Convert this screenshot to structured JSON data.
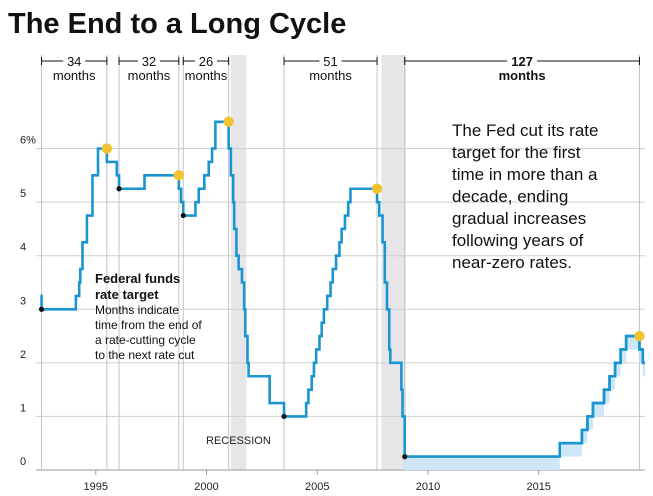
{
  "chart_data": {
    "type": "line",
    "title": "The End to a Long Cycle",
    "series": [
      {
        "values": [
          [
            1992.5,
            3.25
          ],
          [
            1992.55,
            3.0
          ],
          [
            1993.9,
            3.0
          ],
          [
            1994.1,
            3.25
          ],
          [
            1994.25,
            3.5
          ],
          [
            1994.3,
            3.75
          ],
          [
            1994.4,
            4.25
          ],
          [
            1994.6,
            4.75
          ],
          [
            1994.85,
            5.5
          ],
          [
            1995.1,
            6.0
          ],
          [
            1995.5,
            5.75
          ],
          [
            1995.95,
            5.5
          ],
          [
            1996.05,
            5.25
          ],
          [
            1997.2,
            5.5
          ],
          [
            1998.75,
            5.25
          ],
          [
            1998.85,
            5.0
          ],
          [
            1998.95,
            4.75
          ],
          [
            1999.5,
            5.0
          ],
          [
            1999.65,
            5.25
          ],
          [
            1999.9,
            5.5
          ],
          [
            2000.1,
            5.75
          ],
          [
            2000.25,
            6.0
          ],
          [
            2000.4,
            6.5
          ],
          [
            2001.0,
            6.0
          ],
          [
            2001.1,
            5.5
          ],
          [
            2001.2,
            5.0
          ],
          [
            2001.25,
            4.5
          ],
          [
            2001.35,
            4.0
          ],
          [
            2001.45,
            3.75
          ],
          [
            2001.6,
            3.5
          ],
          [
            2001.7,
            3.0
          ],
          [
            2001.75,
            2.5
          ],
          [
            2001.85,
            2.0
          ],
          [
            2001.9,
            1.75
          ],
          [
            2002.85,
            1.25
          ],
          [
            2003.5,
            1.0
          ],
          [
            2004.5,
            1.25
          ],
          [
            2004.6,
            1.5
          ],
          [
            2004.75,
            1.75
          ],
          [
            2004.85,
            2.0
          ],
          [
            2004.95,
            2.25
          ],
          [
            2005.1,
            2.5
          ],
          [
            2005.2,
            2.75
          ],
          [
            2005.3,
            3.0
          ],
          [
            2005.45,
            3.25
          ],
          [
            2005.6,
            3.5
          ],
          [
            2005.7,
            3.75
          ],
          [
            2005.85,
            4.0
          ],
          [
            2006.0,
            4.25
          ],
          [
            2006.1,
            4.5
          ],
          [
            2006.25,
            4.75
          ],
          [
            2006.4,
            5.0
          ],
          [
            2006.5,
            5.25
          ],
          [
            2007.7,
            5.0
          ],
          [
            2007.8,
            4.75
          ],
          [
            2007.95,
            4.25
          ],
          [
            2008.05,
            3.5
          ],
          [
            2008.15,
            3.0
          ],
          [
            2008.25,
            2.25
          ],
          [
            2008.3,
            2.0
          ],
          [
            2008.8,
            1.5
          ],
          [
            2008.85,
            1.0
          ],
          [
            2008.95,
            0.25
          ],
          [
            2015.95,
            0.5
          ],
          [
            2016.95,
            0.75
          ],
          [
            2017.2,
            1.0
          ],
          [
            2017.45,
            1.25
          ],
          [
            2017.95,
            1.5
          ],
          [
            2018.2,
            1.75
          ],
          [
            2018.45,
            2.0
          ],
          [
            2018.7,
            2.25
          ],
          [
            2018.95,
            2.5
          ],
          [
            2019.55,
            2.25
          ],
          [
            2019.7,
            2.0
          ],
          [
            2019.8,
            2.0
          ]
        ]
      }
    ],
    "range_series": [
      [
        2015.95,
        0.25,
        0.5
      ],
      [
        2016.95,
        0.5,
        0.75
      ],
      [
        2017.2,
        0.75,
        1.0
      ],
      [
        2017.45,
        1.0,
        1.25
      ],
      [
        2017.95,
        1.25,
        1.5
      ],
      [
        2018.2,
        1.5,
        1.75
      ],
      [
        2018.45,
        1.75,
        2.0
      ],
      [
        2018.7,
        2.0,
        2.25
      ],
      [
        2018.95,
        2.25,
        2.5
      ],
      [
        2019.55,
        2.0,
        2.25
      ],
      [
        2019.7,
        1.75,
        2.0
      ],
      [
        2019.8,
        1.75,
        2.0
      ]
    ],
    "zero_band": [
      [
        2008.95,
        2015.95,
        0.0,
        0.25
      ]
    ],
    "xlim": [
      1992.3,
      2019.8
    ],
    "ylim": [
      0,
      7
    ],
    "y_ticks": [
      {
        "value": 0,
        "label": "0"
      },
      {
        "value": 1,
        "label": "1"
      },
      {
        "value": 2,
        "label": "2"
      },
      {
        "value": 3,
        "label": "3"
      },
      {
        "value": 4,
        "label": "4"
      },
      {
        "value": 5,
        "label": "5"
      },
      {
        "value": 6,
        "label": "6%"
      }
    ],
    "x_ticks": [
      {
        "value": 1995,
        "label": "1995"
      },
      {
        "value": 2000,
        "label": "2000"
      },
      {
        "value": 2005,
        "label": "2005"
      },
      {
        "value": 2010,
        "label": "2010"
      },
      {
        "value": 2015,
        "label": "2015"
      }
    ],
    "recessions": [
      [
        2001.1,
        2001.8
      ],
      [
        2007.9,
        2009.0
      ]
    ],
    "recession_label": "RECESSION",
    "cycles": [
      {
        "start": 1992.55,
        "end": 1995.5,
        "number": "34",
        "unit": "months",
        "bold": false
      },
      {
        "start": 1996.05,
        "end": 1998.75,
        "number": "32",
        "unit": "months",
        "bold": false
      },
      {
        "start": 1998.95,
        "end": 2001.0,
        "number": "26",
        "unit": "months",
        "bold": false
      },
      {
        "start": 2003.5,
        "end": 2007.7,
        "number": "51",
        "unit": "months",
        "bold": false
      },
      {
        "start": 2008.95,
        "end": 2019.55,
        "number": "127",
        "unit": "months",
        "bold": true
      }
    ],
    "peaks": [
      {
        "x": 1995.5,
        "y": 6.0
      },
      {
        "x": 1998.75,
        "y": 5.5
      },
      {
        "x": 2001.0,
        "y": 6.5
      },
      {
        "x": 2007.7,
        "y": 5.25
      },
      {
        "x": 2019.55,
        "y": 2.5
      }
    ],
    "troughs": [
      {
        "x": 1992.55,
        "y": 3.0
      },
      {
        "x": 1996.05,
        "y": 5.25
      },
      {
        "x": 1998.95,
        "y": 4.75
      },
      {
        "x": 2003.5,
        "y": 1.0
      },
      {
        "x": 2008.95,
        "y": 0.25
      }
    ],
    "annotation_lines": [
      "The Fed cut its rate",
      "target for the first",
      "time in more than a",
      "decade, ending",
      "gradual increases",
      "following years of",
      "near-zero rates."
    ],
    "legend_title_lines": [
      "Federal funds",
      "rate target"
    ],
    "legend_sub_lines": [
      "Months indicate",
      "time from the end of",
      "a rate-cutting cycle",
      "to the next rate cut"
    ],
    "colors": {
      "line": "#1a95d2",
      "band_fill": "#cfe6f7",
      "peak_dot": "#f2c230",
      "trough_dot": "#111111",
      "recession": "#e6e6e9",
      "cycle_line": "#c4c4c4"
    }
  }
}
